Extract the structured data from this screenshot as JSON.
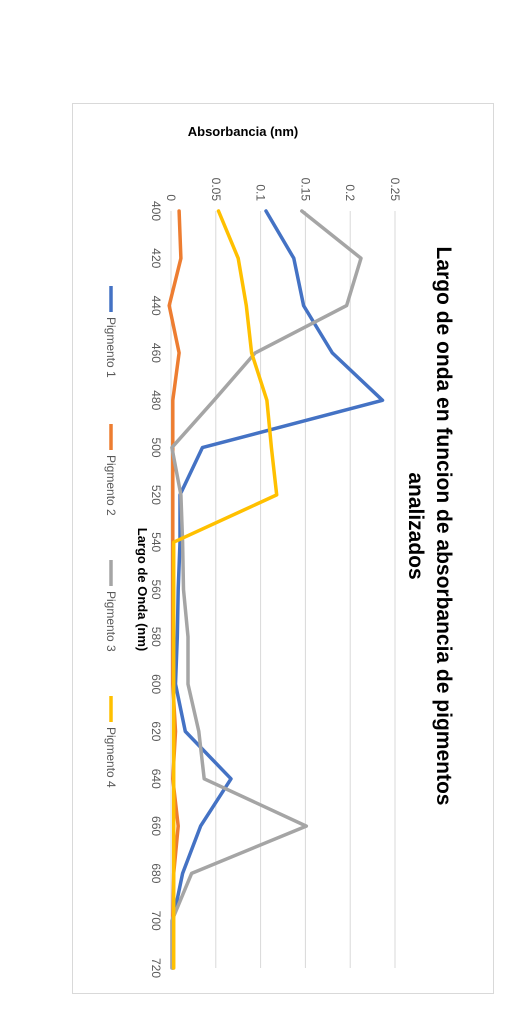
{
  "chart_data": {
    "type": "line",
    "title_lines": [
      "Largo de onda en funcion de absorbancia de  pigmentos",
      "analizados"
    ],
    "xlabel": "Largo de Onda (nm)",
    "ylabel": "Absorbancia (nm)",
    "x": [
      400,
      420,
      440,
      460,
      480,
      500,
      520,
      540,
      560,
      580,
      600,
      620,
      640,
      660,
      680,
      700,
      720
    ],
    "y_ticks": [
      "0",
      "0.05",
      "0.1",
      "0.15",
      "0.2",
      "0.25"
    ],
    "ylim": [
      0,
      0.25
    ],
    "grid": true,
    "legend_position": "bottom",
    "series": [
      {
        "name": "Pigmento 1",
        "color": "#4472c4",
        "values": [
          0.106,
          0.137,
          0.148,
          0.18,
          0.236,
          0.035,
          0.01,
          0.01,
          0.008,
          0.007,
          0.005,
          0.016,
          0.067,
          0.033,
          0.013,
          0.002,
          0.002
        ]
      },
      {
        "name": "Pigmento 2",
        "color": "#ed7d31",
        "values": [
          0.009,
          0.011,
          -0.002,
          0.009,
          0.002,
          0.002,
          0.002,
          0.002,
          0.002,
          0.002,
          0.002,
          0.005,
          0.002,
          0.008,
          0.003,
          0.002,
          0.002
        ]
      },
      {
        "name": "Pigmento 3",
        "color": "#a5a5a5",
        "values": [
          0.146,
          0.212,
          0.196,
          0.094,
          0.048,
          0.001,
          0.011,
          0.013,
          0.014,
          0.019,
          0.019,
          0.031,
          0.037,
          0.151,
          0.023,
          0.001,
          0.001
        ]
      },
      {
        "name": "Pigmento 4",
        "color": "#ffc000",
        "values": [
          0.053,
          0.075,
          0.084,
          0.09,
          0.107,
          0.112,
          0.118,
          0.003,
          0.003,
          0.003,
          0.003,
          0.003,
          0.003,
          0.003,
          0.003,
          0.003,
          0.003
        ]
      }
    ]
  }
}
